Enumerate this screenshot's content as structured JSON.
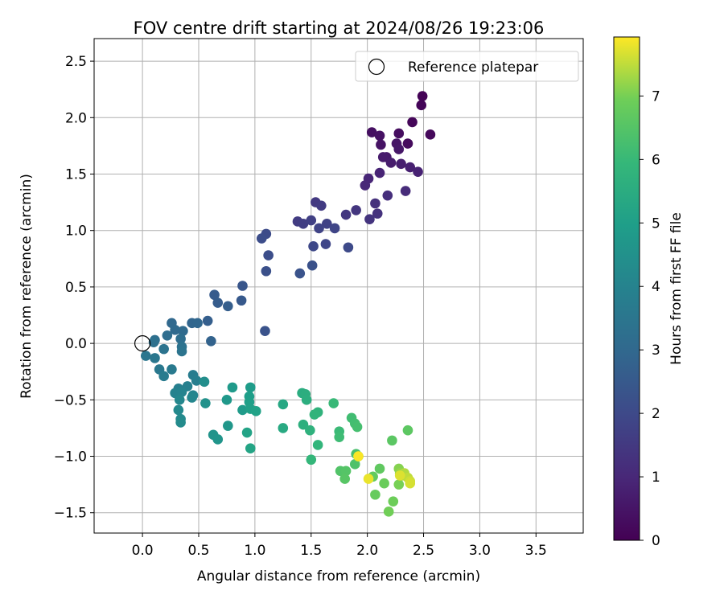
{
  "chart_data": {
    "type": "scatter",
    "title": "FOV centre drift starting at 2024/08/26 19:23:06",
    "xlabel": "Angular distance from reference (arcmin)",
    "ylabel": "Rotation from reference (arcmin)",
    "xlim": [
      -0.43,
      3.92
    ],
    "ylim": [
      -1.68,
      2.7
    ],
    "xticks": [
      "0.0",
      "0.5",
      "1.0",
      "1.5",
      "2.0",
      "2.5",
      "3.0",
      "3.5"
    ],
    "yticks": [
      "−1.5",
      "−1.0",
      "−0.5",
      "0.0",
      "0.5",
      "1.0",
      "1.5",
      "2.0",
      "2.5"
    ],
    "grid": true,
    "legend": {
      "placement": "top-right",
      "entries": [
        "Reference platepar"
      ]
    },
    "reference_point": {
      "x": 0.0,
      "y": 0.0
    },
    "colorbar": {
      "label": "Hours from first FF file",
      "colormap": "viridis",
      "range": [
        0,
        7.93
      ],
      "ticks": [
        "0",
        "1",
        "2",
        "3",
        "4",
        "5",
        "6",
        "7"
      ]
    },
    "points": [
      {
        "x": 2.49,
        "y": 2.19,
        "c": 0.05
      },
      {
        "x": 2.48,
        "y": 2.11,
        "c": 0.1
      },
      {
        "x": 2.4,
        "y": 1.96,
        "c": 0.15
      },
      {
        "x": 2.56,
        "y": 1.85,
        "c": 0.2
      },
      {
        "x": 2.36,
        "y": 1.77,
        "c": 0.25
      },
      {
        "x": 2.28,
        "y": 1.86,
        "c": 0.3
      },
      {
        "x": 2.04,
        "y": 1.87,
        "c": 0.35
      },
      {
        "x": 2.11,
        "y": 1.84,
        "c": 0.4
      },
      {
        "x": 2.12,
        "y": 1.76,
        "c": 0.45
      },
      {
        "x": 2.26,
        "y": 1.77,
        "c": 0.5
      },
      {
        "x": 2.28,
        "y": 1.72,
        "c": 0.55
      },
      {
        "x": 2.17,
        "y": 1.65,
        "c": 0.6
      },
      {
        "x": 2.14,
        "y": 1.65,
        "c": 0.65
      },
      {
        "x": 2.21,
        "y": 1.6,
        "c": 0.7
      },
      {
        "x": 2.3,
        "y": 1.59,
        "c": 0.75
      },
      {
        "x": 2.38,
        "y": 1.56,
        "c": 0.8
      },
      {
        "x": 2.45,
        "y": 1.52,
        "c": 0.85
      },
      {
        "x": 2.11,
        "y": 1.51,
        "c": 0.9
      },
      {
        "x": 2.01,
        "y": 1.46,
        "c": 0.95
      },
      {
        "x": 1.98,
        "y": 1.4,
        "c": 1.0
      },
      {
        "x": 2.34,
        "y": 1.35,
        "c": 1.1
      },
      {
        "x": 2.18,
        "y": 1.31,
        "c": 1.2
      },
      {
        "x": 2.07,
        "y": 1.24,
        "c": 1.25
      },
      {
        "x": 2.09,
        "y": 1.15,
        "c": 1.3
      },
      {
        "x": 2.02,
        "y": 1.1,
        "c": 1.35
      },
      {
        "x": 1.9,
        "y": 1.18,
        "c": 1.4
      },
      {
        "x": 1.81,
        "y": 1.14,
        "c": 1.45
      },
      {
        "x": 1.54,
        "y": 1.25,
        "c": 1.5
      },
      {
        "x": 1.59,
        "y": 1.22,
        "c": 1.55
      },
      {
        "x": 1.38,
        "y": 1.08,
        "c": 1.6
      },
      {
        "x": 1.43,
        "y": 1.06,
        "c": 1.65
      },
      {
        "x": 1.5,
        "y": 1.09,
        "c": 1.7
      },
      {
        "x": 1.64,
        "y": 1.06,
        "c": 1.75
      },
      {
        "x": 1.57,
        "y": 1.02,
        "c": 1.8
      },
      {
        "x": 1.71,
        "y": 1.02,
        "c": 1.85
      },
      {
        "x": 1.63,
        "y": 0.88,
        "c": 1.9
      },
      {
        "x": 1.52,
        "y": 0.86,
        "c": 1.95
      },
      {
        "x": 1.83,
        "y": 0.85,
        "c": 2.0
      },
      {
        "x": 1.1,
        "y": 0.97,
        "c": 2.05
      },
      {
        "x": 1.06,
        "y": 0.93,
        "c": 2.1
      },
      {
        "x": 1.12,
        "y": 0.78,
        "c": 2.15
      },
      {
        "x": 1.1,
        "y": 0.64,
        "c": 2.2
      },
      {
        "x": 1.51,
        "y": 0.69,
        "c": 2.25
      },
      {
        "x": 1.4,
        "y": 0.62,
        "c": 2.3
      },
      {
        "x": 0.89,
        "y": 0.51,
        "c": 2.4
      },
      {
        "x": 0.88,
        "y": 0.38,
        "c": 2.5
      },
      {
        "x": 0.64,
        "y": 0.43,
        "c": 2.55
      },
      {
        "x": 0.67,
        "y": 0.36,
        "c": 2.6
      },
      {
        "x": 0.76,
        "y": 0.33,
        "c": 2.65
      },
      {
        "x": 0.58,
        "y": 0.2,
        "c": 2.7
      },
      {
        "x": 1.09,
        "y": 0.11,
        "c": 2.3
      },
      {
        "x": 0.61,
        "y": 0.02,
        "c": 2.8
      },
      {
        "x": 0.44,
        "y": 0.18,
        "c": 2.9
      },
      {
        "x": 0.49,
        "y": 0.18,
        "c": 2.95
      },
      {
        "x": 0.26,
        "y": 0.18,
        "c": 3.0
      },
      {
        "x": 0.29,
        "y": 0.12,
        "c": 3.05
      },
      {
        "x": 0.36,
        "y": 0.11,
        "c": 3.1
      },
      {
        "x": 0.22,
        "y": 0.07,
        "c": 3.15
      },
      {
        "x": 0.34,
        "y": 0.04,
        "c": 3.2
      },
      {
        "x": 0.11,
        "y": 0.03,
        "c": 3.25
      },
      {
        "x": 0.1,
        "y": 0.01,
        "c": 3.3
      },
      {
        "x": 0.35,
        "y": -0.03,
        "c": 3.35
      },
      {
        "x": 0.19,
        "y": -0.05,
        "c": 3.4
      },
      {
        "x": 0.35,
        "y": -0.07,
        "c": 3.45
      },
      {
        "x": 0.03,
        "y": -0.11,
        "c": 3.5
      },
      {
        "x": 0.11,
        "y": -0.13,
        "c": 3.55
      },
      {
        "x": 0.15,
        "y": -0.23,
        "c": 3.6
      },
      {
        "x": 0.26,
        "y": -0.23,
        "c": 3.65
      },
      {
        "x": 0.19,
        "y": -0.29,
        "c": 3.7
      },
      {
        "x": 0.45,
        "y": -0.28,
        "c": 3.75
      },
      {
        "x": 0.48,
        "y": -0.33,
        "c": 3.8
      },
      {
        "x": 0.32,
        "y": -0.4,
        "c": 3.85
      },
      {
        "x": 0.4,
        "y": -0.38,
        "c": 3.9
      },
      {
        "x": 0.29,
        "y": -0.44,
        "c": 3.95
      },
      {
        "x": 0.35,
        "y": -0.43,
        "c": 4.0
      },
      {
        "x": 0.45,
        "y": -0.46,
        "c": 4.05
      },
      {
        "x": 0.44,
        "y": -0.48,
        "c": 4.1
      },
      {
        "x": 0.33,
        "y": -0.5,
        "c": 4.15
      },
      {
        "x": 0.32,
        "y": -0.59,
        "c": 4.2
      },
      {
        "x": 0.34,
        "y": -0.67,
        "c": 4.25
      },
      {
        "x": 0.34,
        "y": -0.7,
        "c": 4.3
      },
      {
        "x": 0.55,
        "y": -0.34,
        "c": 4.4
      },
      {
        "x": 0.56,
        "y": -0.53,
        "c": 4.5
      },
      {
        "x": 0.63,
        "y": -0.81,
        "c": 4.6
      },
      {
        "x": 0.67,
        "y": -0.85,
        "c": 4.65
      },
      {
        "x": 0.76,
        "y": -0.73,
        "c": 4.7
      },
      {
        "x": 0.75,
        "y": -0.5,
        "c": 4.75
      },
      {
        "x": 0.8,
        "y": -0.39,
        "c": 4.8
      },
      {
        "x": 0.89,
        "y": -0.59,
        "c": 4.85
      },
      {
        "x": 0.96,
        "y": -0.39,
        "c": 4.9
      },
      {
        "x": 0.95,
        "y": -0.47,
        "c": 4.95
      },
      {
        "x": 0.95,
        "y": -0.52,
        "c": 5.0
      },
      {
        "x": 0.96,
        "y": -0.58,
        "c": 5.05
      },
      {
        "x": 1.01,
        "y": -0.6,
        "c": 5.1
      },
      {
        "x": 0.93,
        "y": -0.79,
        "c": 5.15
      },
      {
        "x": 0.96,
        "y": -0.93,
        "c": 5.2
      },
      {
        "x": 1.25,
        "y": -0.54,
        "c": 5.3
      },
      {
        "x": 1.25,
        "y": -0.75,
        "c": 5.4
      },
      {
        "x": 1.42,
        "y": -0.44,
        "c": 5.5
      },
      {
        "x": 1.45,
        "y": -0.45,
        "c": 5.55
      },
      {
        "x": 1.46,
        "y": -0.5,
        "c": 5.6
      },
      {
        "x": 1.43,
        "y": -0.72,
        "c": 5.65
      },
      {
        "x": 1.49,
        "y": -0.77,
        "c": 5.7
      },
      {
        "x": 1.56,
        "y": -0.61,
        "c": 5.75
      },
      {
        "x": 1.53,
        "y": -0.63,
        "c": 5.8
      },
      {
        "x": 1.56,
        "y": -0.9,
        "c": 5.85
      },
      {
        "x": 1.5,
        "y": -1.03,
        "c": 5.9
      },
      {
        "x": 1.7,
        "y": -0.53,
        "c": 6.0
      },
      {
        "x": 1.75,
        "y": -0.78,
        "c": 6.05
      },
      {
        "x": 1.75,
        "y": -0.83,
        "c": 6.1
      },
      {
        "x": 1.86,
        "y": -0.66,
        "c": 6.15
      },
      {
        "x": 1.89,
        "y": -0.71,
        "c": 6.2
      },
      {
        "x": 1.91,
        "y": -0.74,
        "c": 6.25
      },
      {
        "x": 1.9,
        "y": -0.98,
        "c": 6.3
      },
      {
        "x": 1.92,
        "y": -1.0,
        "c": 6.35
      },
      {
        "x": 1.89,
        "y": -1.07,
        "c": 6.4
      },
      {
        "x": 1.76,
        "y": -1.13,
        "c": 6.45
      },
      {
        "x": 1.81,
        "y": -1.13,
        "c": 6.5
      },
      {
        "x": 1.8,
        "y": -1.2,
        "c": 6.55
      },
      {
        "x": 2.22,
        "y": -0.86,
        "c": 6.6
      },
      {
        "x": 2.36,
        "y": -0.77,
        "c": 6.65
      },
      {
        "x": 2.11,
        "y": -1.11,
        "c": 6.7
      },
      {
        "x": 2.05,
        "y": -1.18,
        "c": 6.75
      },
      {
        "x": 2.07,
        "y": -1.34,
        "c": 6.8
      },
      {
        "x": 2.15,
        "y": -1.24,
        "c": 6.85
      },
      {
        "x": 2.23,
        "y": -1.4,
        "c": 6.9
      },
      {
        "x": 2.19,
        "y": -1.49,
        "c": 6.95
      },
      {
        "x": 2.28,
        "y": -1.25,
        "c": 7.0
      },
      {
        "x": 2.28,
        "y": -1.11,
        "c": 7.1
      },
      {
        "x": 2.29,
        "y": -1.15,
        "c": 7.2
      },
      {
        "x": 2.31,
        "y": -1.17,
        "c": 7.3
      },
      {
        "x": 2.33,
        "y": -1.15,
        "c": 7.4
      },
      {
        "x": 2.36,
        "y": -1.19,
        "c": 7.5
      },
      {
        "x": 2.38,
        "y": -1.22,
        "c": 7.6
      },
      {
        "x": 2.38,
        "y": -1.24,
        "c": 7.65
      },
      {
        "x": 2.29,
        "y": -1.17,
        "c": 7.7
      },
      {
        "x": 2.01,
        "y": -1.2,
        "c": 7.8
      },
      {
        "x": 1.92,
        "y": -1.0,
        "c": 7.9
      }
    ]
  }
}
